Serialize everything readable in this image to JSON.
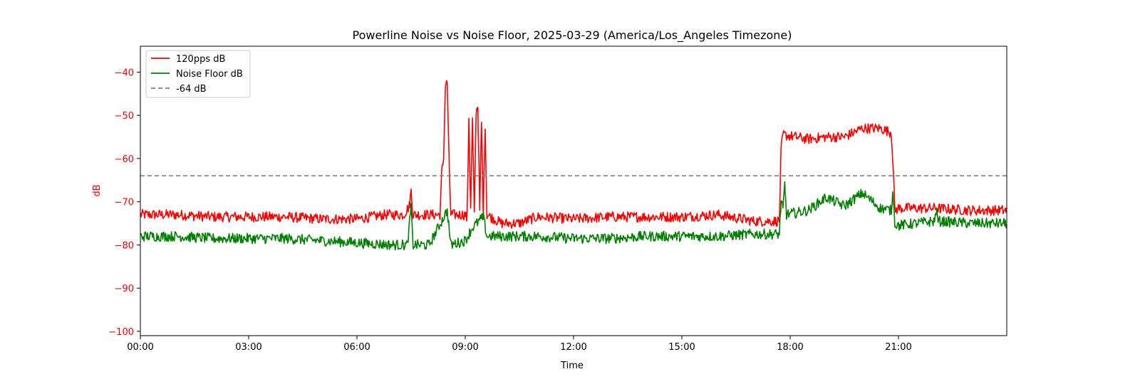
{
  "chart_data": {
    "type": "line",
    "title": "Powerline Noise vs Noise Floor, 2025-03-29 (America/Los_Angeles Timezone)",
    "xlabel": "Time",
    "ylabel": "dB",
    "xlim": [
      0,
      24
    ],
    "ylim": [
      -101,
      -34
    ],
    "x_ticks": [
      {
        "value": 0,
        "label": "00:00"
      },
      {
        "value": 3,
        "label": "03:00"
      },
      {
        "value": 6,
        "label": "06:00"
      },
      {
        "value": 9,
        "label": "09:00"
      },
      {
        "value": 12,
        "label": "12:00"
      },
      {
        "value": 15,
        "label": "15:00"
      },
      {
        "value": 18,
        "label": "18:00"
      },
      {
        "value": 21,
        "label": "21:00"
      }
    ],
    "y_ticks": [
      {
        "value": -40,
        "label": "−40"
      },
      {
        "value": -50,
        "label": "−50"
      },
      {
        "value": -60,
        "label": "−60"
      },
      {
        "value": -70,
        "label": "−70"
      },
      {
        "value": -80,
        "label": "−80"
      },
      {
        "value": -90,
        "label": "−90"
      },
      {
        "value": -100,
        "label": "−100"
      }
    ],
    "colors": {
      "signal": "#ff0000",
      "floor": "#008000",
      "threshold": "#808080",
      "ylabel": "#ff0000",
      "ytick": "#ff0000"
    },
    "legend_position": "top-left",
    "series": [
      {
        "name": "120pps dB",
        "color": "#ff0000",
        "points": [
          [
            0,
            -73
          ],
          [
            1,
            -73
          ],
          [
            2,
            -73.5
          ],
          [
            3,
            -73.5
          ],
          [
            4,
            -73.5
          ],
          [
            5,
            -74
          ],
          [
            6,
            -74
          ],
          [
            6.8,
            -73
          ],
          [
            7.3,
            -73
          ],
          [
            7.45,
            -71
          ],
          [
            7.5,
            -67.5
          ],
          [
            7.55,
            -73
          ],
          [
            8.0,
            -73
          ],
          [
            8.3,
            -73
          ],
          [
            8.35,
            -63
          ],
          [
            8.4,
            -60
          ],
          [
            8.45,
            -43
          ],
          [
            8.5,
            -42.5
          ],
          [
            8.55,
            -60
          ],
          [
            8.6,
            -73
          ],
          [
            9.0,
            -73
          ],
          [
            9.05,
            -74
          ],
          [
            9.1,
            -50.5
          ],
          [
            9.15,
            -72
          ],
          [
            9.2,
            -51
          ],
          [
            9.25,
            -73
          ],
          [
            9.3,
            -49
          ],
          [
            9.35,
            -48
          ],
          [
            9.4,
            -72
          ],
          [
            9.45,
            -51.5
          ],
          [
            9.5,
            -73
          ],
          [
            9.55,
            -52
          ],
          [
            9.6,
            -73
          ],
          [
            10.0,
            -75
          ],
          [
            10.5,
            -75
          ],
          [
            11,
            -73.5
          ],
          [
            12,
            -74
          ],
          [
            13,
            -73.5
          ],
          [
            14,
            -73.5
          ],
          [
            15,
            -73.5
          ],
          [
            16,
            -73
          ],
          [
            17,
            -74.5
          ],
          [
            17.7,
            -74.5
          ],
          [
            17.75,
            -58
          ],
          [
            17.8,
            -54.5
          ],
          [
            18.5,
            -55.5
          ],
          [
            19,
            -55
          ],
          [
            19.5,
            -55
          ],
          [
            20,
            -53
          ],
          [
            20.5,
            -53
          ],
          [
            20.8,
            -54
          ],
          [
            20.85,
            -61
          ],
          [
            20.9,
            -72
          ],
          [
            21,
            -71.5
          ],
          [
            22,
            -71.5
          ],
          [
            23,
            -72
          ],
          [
            24,
            -72
          ]
        ]
      },
      {
        "name": "Noise Floor dB",
        "color": "#008000",
        "points": [
          [
            0,
            -78
          ],
          [
            1,
            -78
          ],
          [
            2,
            -78.5
          ],
          [
            3,
            -78.5
          ],
          [
            4,
            -78.5
          ],
          [
            5,
            -79
          ],
          [
            6,
            -79.5
          ],
          [
            7,
            -80
          ],
          [
            7.4,
            -80
          ],
          [
            7.5,
            -71
          ],
          [
            7.55,
            -80
          ],
          [
            8.0,
            -80
          ],
          [
            8.5,
            -72
          ],
          [
            8.6,
            -80
          ],
          [
            9.0,
            -79
          ],
          [
            9.2,
            -76
          ],
          [
            9.5,
            -73.5
          ],
          [
            9.6,
            -78
          ],
          [
            10,
            -78
          ],
          [
            11,
            -78
          ],
          [
            12,
            -78.5
          ],
          [
            13,
            -78.5
          ],
          [
            14,
            -78
          ],
          [
            15,
            -78
          ],
          [
            16,
            -78
          ],
          [
            17,
            -77.5
          ],
          [
            17.7,
            -77.5
          ],
          [
            17.75,
            -70
          ],
          [
            17.8,
            -72
          ],
          [
            17.85,
            -66
          ],
          [
            17.9,
            -73
          ],
          [
            18.5,
            -72
          ],
          [
            19,
            -69
          ],
          [
            19.5,
            -71
          ],
          [
            20,
            -68
          ],
          [
            20.5,
            -71.5
          ],
          [
            20.8,
            -72
          ],
          [
            20.85,
            -67.5
          ],
          [
            20.9,
            -75
          ],
          [
            21,
            -75.5
          ],
          [
            22,
            -74.5
          ],
          [
            22.05,
            -72
          ],
          [
            22.1,
            -74.5
          ],
          [
            23,
            -75
          ],
          [
            24,
            -75
          ]
        ]
      },
      {
        "name": "-64 dB",
        "color": "#808080",
        "style": "dashed",
        "points": [
          [
            0,
            -64
          ],
          [
            24,
            -64
          ]
        ]
      }
    ]
  }
}
